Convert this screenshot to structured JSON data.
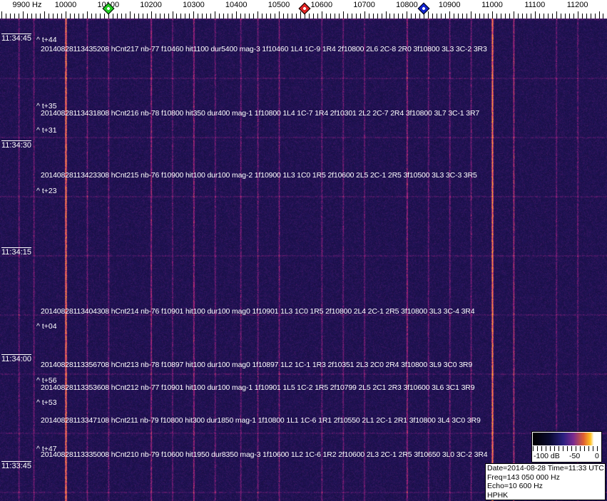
{
  "ruler": {
    "unit_label": "9900 Hz",
    "labels": [
      "10000",
      "10100",
      "10200",
      "10300",
      "10400",
      "10500",
      "10600",
      "10700",
      "10800",
      "10900",
      "11000",
      "11100",
      "11200"
    ],
    "markers": [
      {
        "name": "green",
        "freq_hz": 10100,
        "color": "#22cc22"
      },
      {
        "name": "red",
        "freq_hz": 10560,
        "color": "#dd2222"
      },
      {
        "name": "blue",
        "freq_hz": 10840,
        "color": "#1122cc"
      }
    ]
  },
  "waterfall": {
    "colors": {
      "background": "#1c1650",
      "strong_line": "#e07040",
      "weak_line": "#7a2a8a"
    },
    "strong_lines_hz": [
      10000,
      11000
    ],
    "medium_lines_hz": [
      10800,
      10200,
      10300,
      11050
    ],
    "weak_lines_hz": [
      9890,
      9925,
      10050,
      10100,
      10250,
      10350,
      10410,
      10450,
      10500,
      10600,
      10650,
      10700,
      10850,
      10900,
      10950,
      11150,
      11200
    ]
  },
  "time_labels": [
    "11:34:45",
    "11:34:30",
    "11:34:15",
    "11:34:00",
    "11:33:45"
  ],
  "offsets": [
    "^ t+44",
    "^ t+35",
    "^ t+31",
    "^ t+23",
    "^ t+04",
    "^ t+56",
    "^ t+53",
    "^ t+47"
  ],
  "events": [
    "20140828113435208 hCnt217 nb-77 f10460 hit1100 dur5400 mag-3 1f10460 1L4 1C-9 1R4 2f10800 2L6 2C-8 2R0 3f10800 3L3 3C-2 3R3",
    "20140828113431808 hCnt216 nb-78 f10800 hit350 dur400 mag-1 1f10800 1L4 1C-7 1R4 2f10301 2L2 2C-7 2R4 3f10800 3L7 3C-1 3R7",
    "20140828113423308 hCnt215 nb-76 f10900 hit100 dur100 mag-2 1f10900 1L3 1C0 1R5 2f10600 2L5 2C-1 2R5 3f10500 3L3 3C-3 3R5",
    "20140828113404308 hCnt214 nb-76 f10901 hit100 dur100 mag0 1f10901 1L3 1C0 1R5 2f10800 2L4 2C-1 2R5 3f10800 3L3 3C-4 3R4",
    "20140828113356708 hCnt213 nb-78 f10897 hit100 dur100 mag0 1f10897 1L2 1C-1 1R3 2f10351 2L3 2C0 2R4 3f10800 3L9 3C0 3R9",
    "20140828113353608 hCnt212 nb-77 f10901 hit100 dur100 mag-1 1f10901 1L5 1C-2 1R5 2f10799 2L5 2C1 2R3 3f10600 3L6 3C1 3R9",
    "20140828113347108 hCnt211 nb-79 f10800 hit300 dur1850 mag-1 1f10800 1L1 1C-6 1R1 2f10550 2L1 2C-1 2R1 3f10800 3L4 3C0 3R9",
    "20140828113335008 hCnt210 nb-79 f10600 hit1950 dur8350 mag-3 1f10600 1L2 1C-6 1R2 2f10600 2L3 2C-1 2R5 3f10650 3L0 3C-2 3R4"
  ],
  "colorbar": {
    "labels": [
      "-100 dB",
      "-50",
      "0"
    ]
  },
  "info": {
    "date_time": "Date=2014-08-28 Time=11:33 UTC",
    "freq": "Freq=143 050 000 Hz",
    "echo": "Echo=10 600 Hz",
    "station": "HPHK"
  }
}
